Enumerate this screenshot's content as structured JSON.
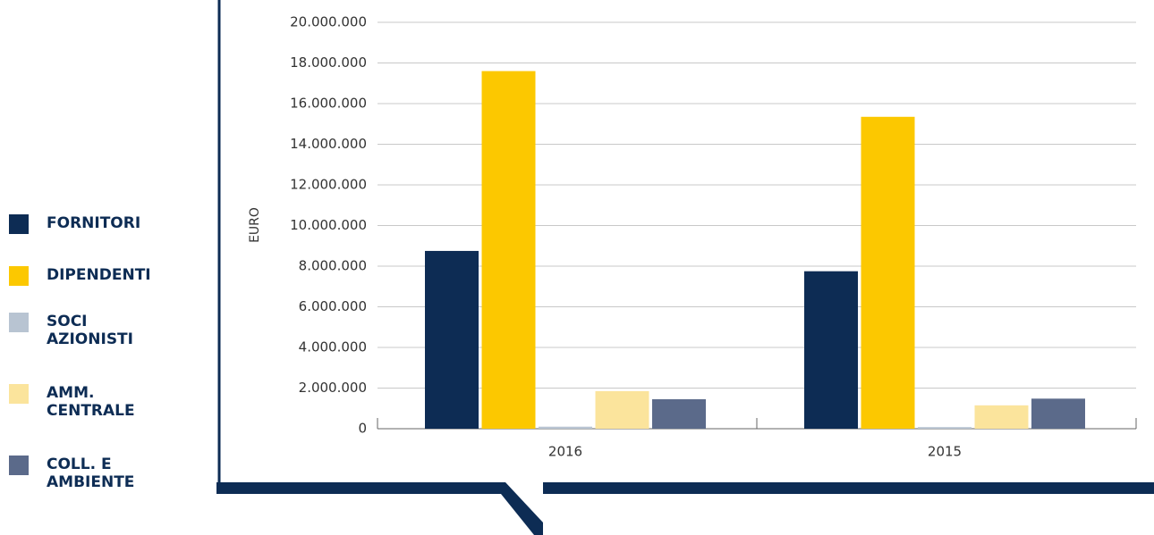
{
  "chart_data": {
    "type": "bar",
    "y_label": "EURO",
    "categories": [
      "2016",
      "2015"
    ],
    "series": [
      {
        "name": "FORNITORI",
        "color": "#0d2c54",
        "values": [
          8750000,
          7750000
        ]
      },
      {
        "name": "DIPENDENTI",
        "color": "#fcc800",
        "values": [
          17600000,
          15350000
        ]
      },
      {
        "name": "SOCI AZIONISTI",
        "color": "#b8c4d2",
        "values": [
          100000,
          80000
        ]
      },
      {
        "name": "AMM. CENTRALE",
        "color": "#fbe49c",
        "values": [
          1850000,
          1150000
        ]
      },
      {
        "name": "COLL. E AMBIENTE",
        "color": "#5b6a8a",
        "values": [
          1450000,
          1480000
        ]
      }
    ],
    "ylim": [
      0,
      20000000
    ],
    "yticks": [
      0,
      {
        "value": 2000000,
        "label": "2.000.000"
      },
      {
        "value": 4000000,
        "label": "4.000.000"
      },
      {
        "value": 6000000,
        "label": "6.000.000"
      },
      {
        "value": 8000000,
        "label": "8.000.000"
      },
      {
        "value": 10000000,
        "label": "10.000.000"
      },
      {
        "value": 12000000,
        "label": "12.000.000"
      },
      {
        "value": 14000000,
        "label": "14.000.000"
      },
      {
        "value": 16000000,
        "label": "16.000.000"
      },
      {
        "value": 18000000,
        "label": "18.000.000"
      },
      {
        "value": 20000000,
        "label": "20.000.000"
      }
    ],
    "grid": true,
    "legend": "left"
  }
}
